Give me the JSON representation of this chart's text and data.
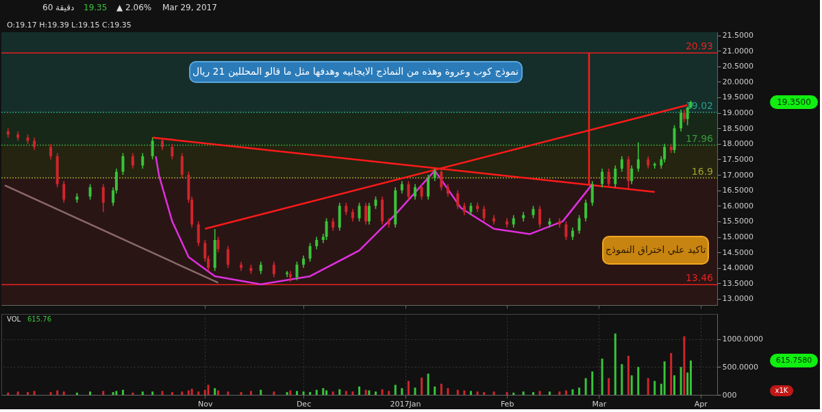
{
  "chart_data": [
    {
      "type": "candlestick",
      "x": [
        "2016-09-02",
        "2016-09-05",
        "2016-09-08",
        "2016-09-10",
        "2016-09-15",
        "2016-09-17",
        "2016-09-19",
        "2016-09-23",
        "2016-09-27",
        "2016-10-01",
        "2016-10-04",
        "2016-10-05",
        "2016-10-07",
        "2016-10-10",
        "2016-10-13",
        "2016-10-16",
        "2016-10-19",
        "2016-10-22",
        "2016-10-25",
        "2016-10-27",
        "2016-10-28",
        "2016-10-30",
        "2016-11-01",
        "2016-11-02",
        "2016-11-04",
        "2016-11-05",
        "2016-11-08",
        "2016-11-12",
        "2016-11-15",
        "2016-11-18",
        "2016-11-22",
        "2016-11-26",
        "2016-11-27",
        "2016-11-29",
        "2016-12-01",
        "2016-12-03",
        "2016-12-05",
        "2016-12-07",
        "2016-12-08",
        "2016-12-10",
        "2016-12-12",
        "2016-12-14",
        "2016-12-16",
        "2016-12-18",
        "2016-12-20",
        "2016-12-21",
        "2016-12-23",
        "2016-12-25",
        "2016-12-27",
        "2016-12-29",
        "2016-12-31",
        "2017-01-02",
        "2017-01-04",
        "2017-01-06",
        "2017-01-08",
        "2017-01-10",
        "2017-01-12",
        "2017-01-14",
        "2017-01-17",
        "2017-01-19",
        "2017-01-21",
        "2017-01-23",
        "2017-01-25",
        "2017-01-28",
        "2017-02-01",
        "2017-02-03",
        "2017-02-06",
        "2017-02-09",
        "2017-02-11",
        "2017-02-14",
        "2017-02-17",
        "2017-02-19",
        "2017-02-21",
        "2017-02-23",
        "2017-02-25",
        "2017-02-27",
        "2017-03-02",
        "2017-03-04",
        "2017-03-06",
        "2017-03-08",
        "2017-03-10",
        "2017-03-11",
        "2017-03-13",
        "2017-03-16",
        "2017-03-18",
        "2017-03-20",
        "2017-03-21",
        "2017-03-23",
        "2017-03-24",
        "2017-03-26",
        "2017-03-27",
        "2017-03-28",
        "2017-03-29"
      ],
      "ohlc": [
        [
          18.4,
          18.5,
          18.2,
          18.3
        ],
        [
          18.3,
          18.4,
          18.1,
          18.2
        ],
        [
          18.2,
          18.3,
          18.0,
          18.1
        ],
        [
          18.1,
          18.2,
          17.8,
          17.9
        ],
        [
          17.9,
          18.0,
          17.5,
          17.6
        ],
        [
          17.6,
          17.7,
          16.6,
          16.7
        ],
        [
          16.7,
          16.8,
          16.1,
          16.2
        ],
        [
          16.2,
          16.4,
          16.1,
          16.3
        ],
        [
          16.3,
          16.7,
          16.2,
          16.6
        ],
        [
          16.6,
          16.7,
          15.8,
          16.1
        ],
        [
          16.1,
          16.6,
          16.0,
          16.5
        ],
        [
          16.5,
          17.2,
          16.4,
          17.1
        ],
        [
          17.1,
          17.7,
          17.0,
          17.6
        ],
        [
          17.6,
          17.7,
          17.2,
          17.3
        ],
        [
          17.3,
          17.7,
          17.2,
          17.6
        ],
        [
          17.6,
          18.2,
          17.5,
          18.1
        ],
        [
          18.1,
          18.2,
          17.8,
          17.9
        ],
        [
          17.9,
          18.0,
          17.5,
          17.6
        ],
        [
          17.6,
          17.7,
          16.9,
          17.0
        ],
        [
          17.0,
          17.1,
          16.1,
          16.2
        ],
        [
          16.2,
          16.3,
          15.3,
          15.4
        ],
        [
          15.4,
          15.5,
          14.7,
          14.8
        ],
        [
          14.8,
          14.9,
          14.2,
          14.3
        ],
        [
          14.3,
          14.4,
          13.9,
          14.0
        ],
        [
          14.0,
          15.25,
          13.9,
          14.9
        ],
        [
          14.9,
          15.0,
          14.5,
          14.6
        ],
        [
          14.6,
          14.7,
          14.0,
          14.1
        ],
        [
          14.1,
          14.2,
          13.9,
          14.0
        ],
        [
          14.0,
          14.1,
          13.8,
          13.9
        ],
        [
          13.9,
          14.2,
          13.8,
          14.1
        ],
        [
          14.1,
          14.2,
          13.7,
          13.8
        ],
        [
          13.8,
          13.9,
          13.7,
          13.85
        ],
        [
          13.8,
          13.9,
          13.55,
          13.7
        ],
        [
          13.7,
          14.2,
          13.6,
          14.1
        ],
        [
          14.1,
          14.4,
          14.0,
          14.3
        ],
        [
          14.3,
          14.8,
          14.2,
          14.7
        ],
        [
          14.7,
          15.0,
          14.6,
          14.9
        ],
        [
          14.9,
          15.1,
          14.8,
          15.0
        ],
        [
          15.0,
          15.6,
          14.9,
          15.5
        ],
        [
          15.5,
          15.6,
          15.2,
          15.3
        ],
        [
          15.3,
          16.1,
          15.2,
          16.0
        ],
        [
          16.0,
          16.1,
          15.7,
          15.8
        ],
        [
          15.8,
          15.9,
          15.5,
          15.6
        ],
        [
          15.6,
          16.1,
          15.5,
          16.0
        ],
        [
          16.0,
          16.1,
          15.4,
          15.5
        ],
        [
          15.5,
          16.1,
          15.4,
          16.0
        ],
        [
          16.0,
          16.3,
          15.9,
          16.2
        ],
        [
          16.2,
          16.3,
          15.4,
          15.5
        ],
        [
          15.5,
          15.6,
          15.3,
          15.4
        ],
        [
          15.4,
          16.6,
          15.3,
          16.5
        ],
        [
          16.5,
          16.8,
          16.4,
          16.7
        ],
        [
          16.7,
          16.8,
          16.2,
          16.3
        ],
        [
          16.3,
          16.7,
          16.2,
          16.6
        ],
        [
          16.6,
          16.7,
          16.2,
          16.3
        ],
        [
          16.3,
          17.0,
          16.2,
          16.9
        ],
        [
          16.9,
          17.2,
          16.8,
          17.1
        ],
        [
          17.1,
          17.2,
          16.5,
          16.6
        ],
        [
          16.6,
          16.7,
          16.3,
          16.4
        ],
        [
          16.4,
          16.5,
          15.9,
          16.0
        ],
        [
          16.0,
          16.1,
          15.7,
          15.8
        ],
        [
          15.8,
          16.1,
          15.7,
          16.0
        ],
        [
          16.0,
          16.1,
          15.8,
          15.9
        ],
        [
          15.9,
          16.0,
          15.5,
          15.6
        ],
        [
          15.6,
          15.7,
          15.4,
          15.5
        ],
        [
          15.5,
          15.6,
          15.3,
          15.4
        ],
        [
          15.4,
          15.7,
          15.3,
          15.6
        ],
        [
          15.6,
          15.8,
          15.5,
          15.7
        ],
        [
          15.7,
          16.0,
          15.6,
          15.9
        ],
        [
          15.9,
          16.0,
          15.3,
          15.4
        ],
        [
          15.4,
          15.6,
          15.3,
          15.5
        ],
        [
          15.5,
          15.6,
          15.3,
          15.4
        ],
        [
          15.4,
          15.5,
          14.9,
          15.0
        ],
        [
          15.0,
          15.3,
          14.9,
          15.2
        ],
        [
          15.2,
          15.7,
          15.1,
          15.6
        ],
        [
          15.6,
          16.2,
          15.5,
          16.1
        ],
        [
          16.1,
          16.8,
          16.0,
          16.7
        ],
        [
          16.7,
          17.2,
          16.6,
          17.1
        ],
        [
          17.1,
          17.2,
          16.6,
          16.7
        ],
        [
          16.7,
          17.3,
          16.6,
          17.2
        ],
        [
          17.2,
          17.6,
          17.1,
          17.5
        ],
        [
          17.5,
          17.6,
          16.55,
          16.8
        ],
        [
          16.8,
          17.3,
          16.7,
          17.2
        ],
        [
          17.2,
          18.05,
          17.1,
          17.5
        ],
        [
          17.5,
          17.6,
          17.2,
          17.3
        ],
        [
          17.3,
          17.4,
          17.2,
          17.35
        ],
        [
          17.3,
          17.6,
          17.2,
          17.5
        ],
        [
          17.5,
          18.0,
          17.4,
          17.9
        ],
        [
          17.9,
          18.0,
          17.7,
          17.8
        ],
        [
          17.8,
          18.6,
          17.7,
          18.5
        ],
        [
          18.5,
          19.1,
          18.4,
          19.0
        ],
        [
          19.0,
          19.1,
          18.7,
          18.8
        ],
        [
          18.8,
          19.2,
          18.6,
          19.17
        ],
        [
          19.17,
          19.39,
          19.15,
          19.35
        ]
      ],
      "series": [
        {
          "type": "line",
          "color": "#8a6a6a",
          "x": [
            "2016-09-01",
            "2016-11-05"
          ],
          "values": [
            16.66,
            13.52
          ]
        },
        {
          "type": "line",
          "color": "#ff1a1a",
          "x": [
            "2016-10-16",
            "2017-03-18"
          ],
          "values": [
            18.2,
            16.45
          ]
        },
        {
          "type": "line",
          "color": "#ff1a1a",
          "x": [
            "2016-11-01",
            "2017-03-28"
          ],
          "values": [
            15.26,
            19.25
          ]
        },
        {
          "type": "line",
          "color": "#ff1a1a",
          "x": [
            "2017-02-26",
            "2017-02-26"
          ],
          "values": [
            16.65,
            20.93
          ]
        },
        {
          "type": "line",
          "color": "#e030e0",
          "x": [
            "2016-10-17",
            "2016-10-18",
            "2016-10-22",
            "2016-10-27",
            "2016-11-04",
            "2016-11-18",
            "2016-12-03",
            "2016-12-18",
            "2016-12-29",
            "2017-01-10"
          ],
          "values": [
            17.6,
            16.97,
            15.5,
            14.35,
            13.73,
            13.47,
            13.73,
            14.56,
            15.72,
            17.14
          ]
        },
        {
          "type": "line",
          "color": "#e030e0",
          "x": [
            "2017-01-10",
            "2017-01-18",
            "2017-01-28",
            "2017-02-08",
            "2017-02-18",
            "2017-02-27"
          ],
          "values": [
            17.14,
            15.93,
            15.26,
            15.09,
            15.5,
            16.7
          ]
        }
      ],
      "ref_lines": [
        {
          "axis": "y",
          "value": 20.93,
          "label": "20.93",
          "color": "#e82020",
          "line_style": "solid"
        },
        {
          "axis": "y",
          "value": 19.02,
          "label": "19.02",
          "color": "#2aa08a",
          "line_style": "dotted"
        },
        {
          "axis": "y",
          "value": 17.96,
          "label": "17.96",
          "color": "#3a9a3a",
          "line_style": "dotted"
        },
        {
          "axis": "y",
          "value": 16.9,
          "label": "16.9",
          "color": "#a0a030",
          "line_style": "dotted"
        },
        {
          "axis": "y",
          "value": 13.46,
          "label": "13.46",
          "color": "#e82020",
          "line_style": "solid"
        }
      ],
      "bands": [
        {
          "axis": "y",
          "from": 19.02,
          "to": 21.6,
          "color": "#152e2a"
        },
        {
          "axis": "y",
          "from": 17.96,
          "to": 19.02,
          "color": "#182818"
        },
        {
          "axis": "y",
          "from": 16.9,
          "to": 17.96,
          "color": "#242410"
        },
        {
          "axis": "y",
          "from": 12.8,
          "to": 16.9,
          "color": "#2a1515"
        }
      ],
      "annotations": [
        "60 دقيقة",
        "19.35",
        "▲ 2.06%",
        "Mar 29, 2017",
        "O:19.17  H:19.39  L:19.15  C:19.35",
        "نموذج كوب وعروة وهذه من النماذج الايجابيه وهدفها مثل ما قالو المحللين 21 ريال",
        "تاكيد علي اختراق النموذج",
        "19.3500"
      ],
      "xlim": [
        "2016-09-01",
        "2017-04-05"
      ],
      "xticks": [
        {
          "value": "2016-11-01",
          "label": null
        },
        {
          "value": "2016-12-01",
          "label": null
        },
        {
          "value": "2017-01-01",
          "label": null
        },
        {
          "value": "2017-02-01",
          "label": null
        },
        {
          "value": "2017-03-01",
          "label": null
        },
        {
          "value": "2017-04-01",
          "label": null
        }
      ],
      "ylim": [
        12.8,
        21.6
      ],
      "yticks": [
        {
          "value": 13.0,
          "label": "13.0000"
        },
        {
          "value": 13.5,
          "label": "13.5000"
        },
        {
          "value": 14.0,
          "label": "14.0000"
        },
        {
          "value": 14.5,
          "label": "14.5000"
        },
        {
          "value": 15.0,
          "label": "15.0000"
        },
        {
          "value": 15.5,
          "label": "15.5000"
        },
        {
          "value": 16.0,
          "label": "16.0000"
        },
        {
          "value": 16.5,
          "label": "16.5000"
        },
        {
          "value": 17.0,
          "label": "17.0000"
        },
        {
          "value": 17.5,
          "label": "17.5000"
        },
        {
          "value": 18.0,
          "label": "18.0000"
        },
        {
          "value": 18.5,
          "label": "18.5000"
        },
        {
          "value": 19.0,
          "label": "19.0000"
        },
        {
          "value": 19.5,
          "label": "19.5000"
        },
        {
          "value": 20.0,
          "label": "20.0000"
        },
        {
          "value": 20.5,
          "label": "20.5000"
        },
        {
          "value": 21.0,
          "label": "21.0000"
        },
        {
          "value": 21.5,
          "label": "21.5000"
        }
      ],
      "grid": true,
      "tick_labels": "y"
    },
    {
      "type": "bar",
      "x": [
        "2016-09-02",
        "2016-09-05",
        "2016-09-08",
        "2016-09-10",
        "2016-09-15",
        "2016-09-17",
        "2016-09-19",
        "2016-09-23",
        "2016-09-27",
        "2016-10-01",
        "2016-10-04",
        "2016-10-05",
        "2016-10-07",
        "2016-10-10",
        "2016-10-13",
        "2016-10-16",
        "2016-10-19",
        "2016-10-22",
        "2016-10-25",
        "2016-10-27",
        "2016-10-28",
        "2016-10-30",
        "2016-11-01",
        "2016-11-02",
        "2016-11-04",
        "2016-11-05",
        "2016-11-08",
        "2016-11-12",
        "2016-11-15",
        "2016-11-18",
        "2016-11-22",
        "2016-11-26",
        "2016-11-27",
        "2016-11-29",
        "2016-12-01",
        "2016-12-03",
        "2016-12-05",
        "2016-12-07",
        "2016-12-08",
        "2016-12-10",
        "2016-12-12",
        "2016-12-14",
        "2016-12-16",
        "2016-12-18",
        "2016-12-20",
        "2016-12-21",
        "2016-12-23",
        "2016-12-25",
        "2016-12-27",
        "2016-12-29",
        "2016-12-31",
        "2017-01-02",
        "2017-01-04",
        "2017-01-06",
        "2017-01-08",
        "2017-01-10",
        "2017-01-12",
        "2017-01-14",
        "2017-01-17",
        "2017-01-19",
        "2017-01-21",
        "2017-01-23",
        "2017-01-25",
        "2017-01-28",
        "2017-02-01",
        "2017-02-03",
        "2017-02-06",
        "2017-02-09",
        "2017-02-11",
        "2017-02-14",
        "2017-02-17",
        "2017-02-19",
        "2017-02-21",
        "2017-02-23",
        "2017-02-25",
        "2017-02-27",
        "2017-03-02",
        "2017-03-04",
        "2017-03-06",
        "2017-03-08",
        "2017-03-10",
        "2017-03-11",
        "2017-03-13",
        "2017-03-16",
        "2017-03-18",
        "2017-03-20",
        "2017-03-21",
        "2017-03-23",
        "2017-03-24",
        "2017-03-26",
        "2017-03-27",
        "2017-03-28",
        "2017-03-29"
      ],
      "values": [
        40,
        60,
        50,
        70,
        50,
        80,
        60,
        40,
        60,
        70,
        50,
        70,
        90,
        40,
        60,
        60,
        70,
        50,
        60,
        80,
        110,
        60,
        90,
        180,
        120,
        80,
        60,
        50,
        70,
        90,
        60,
        50,
        80,
        70,
        60,
        50,
        90,
        120,
        80,
        60,
        100,
        70,
        60,
        150,
        90,
        80,
        60,
        100,
        70,
        180,
        120,
        250,
        130,
        310,
        380,
        150,
        200,
        120,
        90,
        80,
        70,
        60,
        50,
        60,
        50,
        40,
        60,
        50,
        70,
        60,
        60,
        80,
        100,
        130,
        300,
        420,
        650,
        300,
        1100,
        550,
        700,
        350,
        500,
        300,
        250,
        200,
        600,
        750,
        350,
        500,
        1050,
        400,
        615.76
      ],
      "colors": [
        "#d0252b",
        "#d0252b",
        "#d0252b",
        "#d0252b",
        "#d0252b",
        "#d0252b",
        "#d0252b",
        "#39c43a",
        "#39c43a",
        "#d0252b",
        "#39c43a",
        "#39c43a",
        "#39c43a",
        "#d0252b",
        "#39c43a",
        "#39c43a",
        "#d0252b",
        "#d0252b",
        "#d0252b",
        "#d0252b",
        "#d0252b",
        "#d0252b",
        "#d0252b",
        "#d0252b",
        "#39c43a",
        "#d0252b",
        "#d0252b",
        "#d0252b",
        "#d0252b",
        "#39c43a",
        "#d0252b",
        "#39c43a",
        "#d0252b",
        "#39c43a",
        "#39c43a",
        "#39c43a",
        "#39c43a",
        "#39c43a",
        "#39c43a",
        "#d0252b",
        "#39c43a",
        "#d0252b",
        "#d0252b",
        "#39c43a",
        "#d0252b",
        "#39c43a",
        "#39c43a",
        "#d0252b",
        "#d0252b",
        "#39c43a",
        "#39c43a",
        "#d0252b",
        "#39c43a",
        "#d0252b",
        "#39c43a",
        "#39c43a",
        "#d0252b",
        "#d0252b",
        "#d0252b",
        "#d0252b",
        "#39c43a",
        "#d0252b",
        "#d0252b",
        "#d0252b",
        "#d0252b",
        "#39c43a",
        "#39c43a",
        "#39c43a",
        "#d0252b",
        "#39c43a",
        "#d0252b",
        "#d0252b",
        "#39c43a",
        "#39c43a",
        "#39c43a",
        "#39c43a",
        "#39c43a",
        "#d0252b",
        "#39c43a",
        "#39c43a",
        "#d0252b",
        "#39c43a",
        "#39c43a",
        "#d0252b",
        "#39c43a",
        "#39c43a",
        "#39c43a",
        "#d0252b",
        "#39c43a",
        "#39c43a",
        "#d0252b",
        "#39c43a",
        "#39c43a"
      ],
      "annotations": [
        "VOL",
        "615.76",
        "615.7580",
        "x1K"
      ],
      "xlim": [
        "2016-09-01",
        "2017-04-05"
      ],
      "xticks": [
        {
          "value": "2016-11-01",
          "label": "Nov"
        },
        {
          "value": "2016-12-01",
          "label": "Dec"
        },
        {
          "value": "2017-01-01",
          "label": "2017Jan"
        },
        {
          "value": "2017-02-01",
          "label": "Feb"
        },
        {
          "value": "2017-03-01",
          "label": "Mar"
        },
        {
          "value": "2017-04-01",
          "label": "Apr"
        }
      ],
      "ylim": [
        0,
        1450
      ],
      "yticks": [
        {
          "value": 0,
          "label": "000"
        },
        {
          "value": 500,
          "label": "500.0000"
        },
        {
          "value": 1000,
          "label": "1000.0000"
        }
      ],
      "grid": true
    }
  ]
}
